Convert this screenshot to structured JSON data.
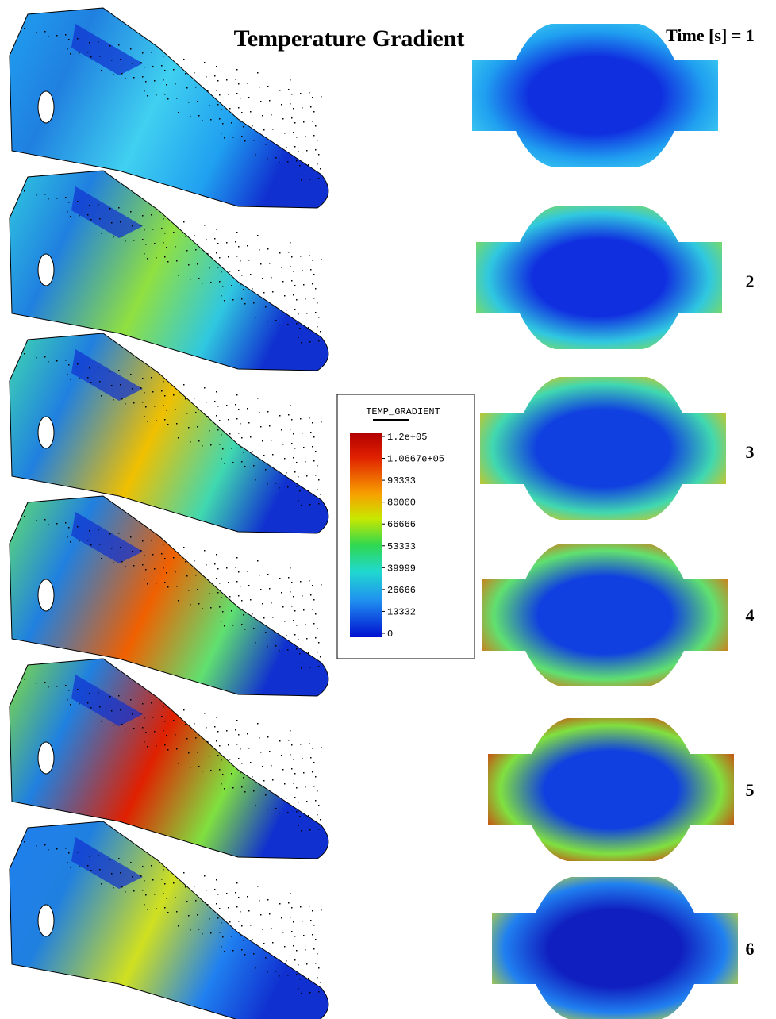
{
  "header": {
    "title": "Temperature Gradient",
    "time_label": "Time [s] = 1"
  },
  "steps": [
    "2",
    "3",
    "4",
    "5",
    "6"
  ],
  "legend": {
    "title": "TEMP_GRADIENT",
    "labels": [
      "1.2e+05",
      "1.0667e+05",
      "93333",
      "80000",
      "66666",
      "53333",
      "39999",
      "26666",
      "13332",
      "0"
    ]
  }
}
